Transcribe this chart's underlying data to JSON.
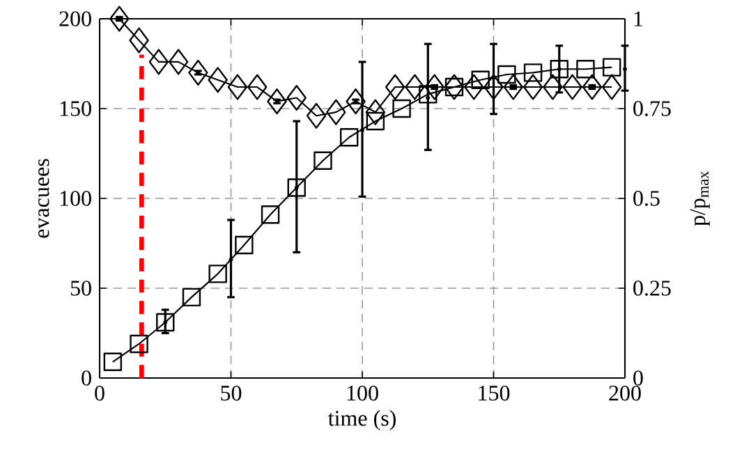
{
  "chart_data": {
    "type": "line",
    "xlabel": "time (s)",
    "ylabel": "evacuees",
    "y2label": "p/p$_{max}$",
    "xlim": [
      0,
      200
    ],
    "xticks": [
      0,
      50,
      100,
      150,
      200
    ],
    "ylim": [
      0,
      200
    ],
    "yticks": [
      0,
      50,
      100,
      150,
      200
    ],
    "y2lim": [
      0,
      1
    ],
    "y2ticks": [
      0,
      0.25,
      0.5,
      0.75,
      1
    ],
    "grid": true,
    "series": [
      {
        "marker": "square",
        "color": "#000000",
        "x": [
          5,
          15,
          25,
          35,
          45,
          55,
          65,
          75,
          85,
          95,
          105,
          115,
          125,
          135,
          145,
          155,
          165,
          175,
          185,
          195
        ],
        "values": [
          9,
          19,
          31,
          45,
          58,
          74,
          91,
          106,
          121,
          134,
          143,
          150,
          158,
          162,
          166,
          169,
          170,
          172,
          172,
          173
        ]
      },
      {
        "marker": "diamond",
        "color": "#000000",
        "axis": "y2",
        "x": [
          7.5,
          15,
          22.5,
          30,
          37.5,
          45,
          52.5,
          60,
          67.5,
          75,
          82.5,
          90,
          97.5,
          105,
          112.5,
          120,
          127.5,
          135,
          142.5,
          150,
          157.5,
          165,
          172.5,
          180,
          187.5,
          195
        ],
        "values": [
          1.0,
          0.94,
          0.88,
          0.88,
          0.85,
          0.83,
          0.81,
          0.81,
          0.77,
          0.78,
          0.73,
          0.74,
          0.77,
          0.74,
          0.81,
          0.81,
          0.81,
          0.81,
          0.81,
          0.81,
          0.81,
          0.81,
          0.81,
          0.81,
          0.81,
          0.81
        ],
        "errors": [
          0.005,
          null,
          null,
          null,
          0.005,
          null,
          null,
          null,
          0.005,
          null,
          null,
          null,
          0.005,
          null,
          null,
          null,
          0.005,
          null,
          null,
          null,
          0.005,
          null,
          null,
          null,
          0.005,
          null
        ]
      },
      {
        "type": "scatter",
        "marker": "none",
        "color": "#000000",
        "x": [
          25,
          50,
          75,
          100,
          125,
          150,
          175,
          200
        ],
        "values": [
          31,
          66,
          106,
          138,
          156,
          167,
          172,
          172
        ],
        "errors": [
          [
            25,
            38
          ],
          [
            45,
            88
          ],
          [
            70,
            143
          ],
          [
            101,
            176
          ],
          [
            127,
            186
          ],
          [
            147,
            186
          ],
          [
            159,
            185
          ],
          [
            160,
            185
          ]
        ]
      }
    ],
    "ref_lines": [
      {
        "axis": "x",
        "value": 16,
        "color": "#ff0000",
        "line_style": "dashed"
      }
    ]
  }
}
